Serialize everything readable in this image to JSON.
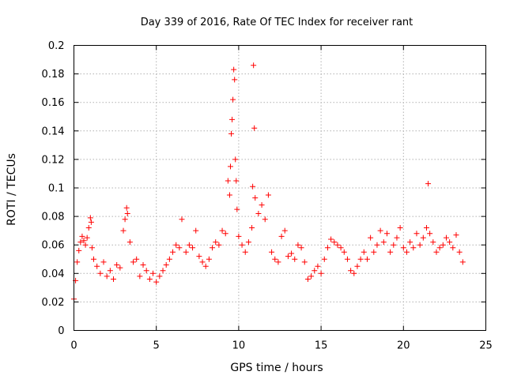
{
  "chart_data": {
    "type": "scatter",
    "title": "Day 339 of 2016, Rate Of TEC Index for receiver rant",
    "xlabel": "GPS time / hours",
    "ylabel": "ROTI / TECUs",
    "xlim": [
      0,
      25
    ],
    "ylim": [
      0,
      0.2
    ],
    "x_ticks": [
      0,
      5,
      10,
      15,
      20,
      25
    ],
    "x_tick_labels": [
      "0",
      "5",
      "10",
      "15",
      "20",
      "25"
    ],
    "y_ticks": [
      0,
      0.02,
      0.04,
      0.06,
      0.08,
      0.1,
      0.12,
      0.14,
      0.16,
      0.18,
      0.2
    ],
    "y_tick_labels": [
      "0",
      "0.02",
      "0.04",
      "0.06",
      "0.08",
      "0.1",
      "0.12",
      "0.14",
      "0.16",
      "0.18",
      "0.2"
    ],
    "grid": true,
    "marker": "plus",
    "marker_color": "#ff0000",
    "series": [
      {
        "name": "ROTI",
        "x": [
          0.0,
          0.1,
          0.2,
          0.3,
          0.4,
          0.5,
          0.6,
          0.7,
          0.8,
          0.9,
          1.0,
          1.05,
          1.1,
          1.2,
          1.4,
          1.6,
          1.8,
          2.0,
          2.2,
          2.4,
          2.6,
          2.8,
          3.0,
          3.1,
          3.2,
          3.25,
          3.4,
          3.6,
          3.8,
          4.0,
          4.2,
          4.4,
          4.6,
          4.8,
          5.0,
          5.2,
          5.4,
          5.6,
          5.8,
          6.0,
          6.2,
          6.4,
          6.55,
          6.8,
          7.0,
          7.2,
          7.4,
          7.6,
          7.8,
          8.0,
          8.2,
          8.4,
          8.6,
          8.8,
          9.0,
          9.2,
          9.35,
          9.45,
          9.5,
          9.55,
          9.6,
          9.65,
          9.7,
          9.75,
          9.8,
          9.85,
          9.9,
          10.0,
          10.2,
          10.4,
          10.6,
          10.8,
          10.85,
          10.9,
          10.95,
          11.0,
          11.2,
          11.4,
          11.6,
          11.8,
          12.0,
          12.2,
          12.4,
          12.6,
          12.8,
          13.0,
          13.2,
          13.4,
          13.6,
          13.8,
          14.0,
          14.2,
          14.4,
          14.6,
          14.8,
          15.0,
          15.2,
          15.4,
          15.6,
          15.8,
          16.0,
          16.2,
          16.4,
          16.6,
          16.8,
          17.0,
          17.2,
          17.4,
          17.6,
          17.8,
          18.0,
          18.2,
          18.4,
          18.6,
          18.8,
          19.0,
          19.2,
          19.4,
          19.6,
          19.8,
          20.0,
          20.2,
          20.4,
          20.6,
          20.8,
          21.0,
          21.2,
          21.4,
          21.5,
          21.6,
          21.8,
          22.0,
          22.2,
          22.4,
          22.6,
          22.8,
          23.0,
          23.2,
          23.4,
          23.6
        ],
        "values": [
          0.022,
          0.035,
          0.048,
          0.056,
          0.062,
          0.066,
          0.063,
          0.06,
          0.065,
          0.072,
          0.079,
          0.076,
          0.058,
          0.05,
          0.045,
          0.04,
          0.048,
          0.038,
          0.042,
          0.036,
          0.046,
          0.044,
          0.07,
          0.078,
          0.086,
          0.082,
          0.062,
          0.048,
          0.05,
          0.038,
          0.046,
          0.042,
          0.036,
          0.04,
          0.034,
          0.038,
          0.042,
          0.046,
          0.05,
          0.055,
          0.06,
          0.058,
          0.078,
          0.055,
          0.06,
          0.058,
          0.07,
          0.052,
          0.048,
          0.045,
          0.05,
          0.058,
          0.062,
          0.06,
          0.07,
          0.068,
          0.105,
          0.095,
          0.115,
          0.138,
          0.148,
          0.162,
          0.183,
          0.176,
          0.12,
          0.105,
          0.085,
          0.066,
          0.06,
          0.055,
          0.062,
          0.072,
          0.101,
          0.186,
          0.142,
          0.093,
          0.082,
          0.088,
          0.078,
          0.095,
          0.055,
          0.05,
          0.048,
          0.066,
          0.07,
          0.052,
          0.054,
          0.05,
          0.06,
          0.058,
          0.048,
          0.036,
          0.038,
          0.042,
          0.045,
          0.04,
          0.05,
          0.058,
          0.064,
          0.062,
          0.06,
          0.058,
          0.055,
          0.05,
          0.042,
          0.04,
          0.045,
          0.05,
          0.055,
          0.05,
          0.065,
          0.055,
          0.06,
          0.07,
          0.062,
          0.068,
          0.055,
          0.06,
          0.065,
          0.072,
          0.058,
          0.055,
          0.062,
          0.058,
          0.068,
          0.06,
          0.065,
          0.072,
          0.103,
          0.068,
          0.062,
          0.055,
          0.058,
          0.06,
          0.065,
          0.062,
          0.058,
          0.067,
          0.055,
          0.048
        ]
      }
    ]
  }
}
